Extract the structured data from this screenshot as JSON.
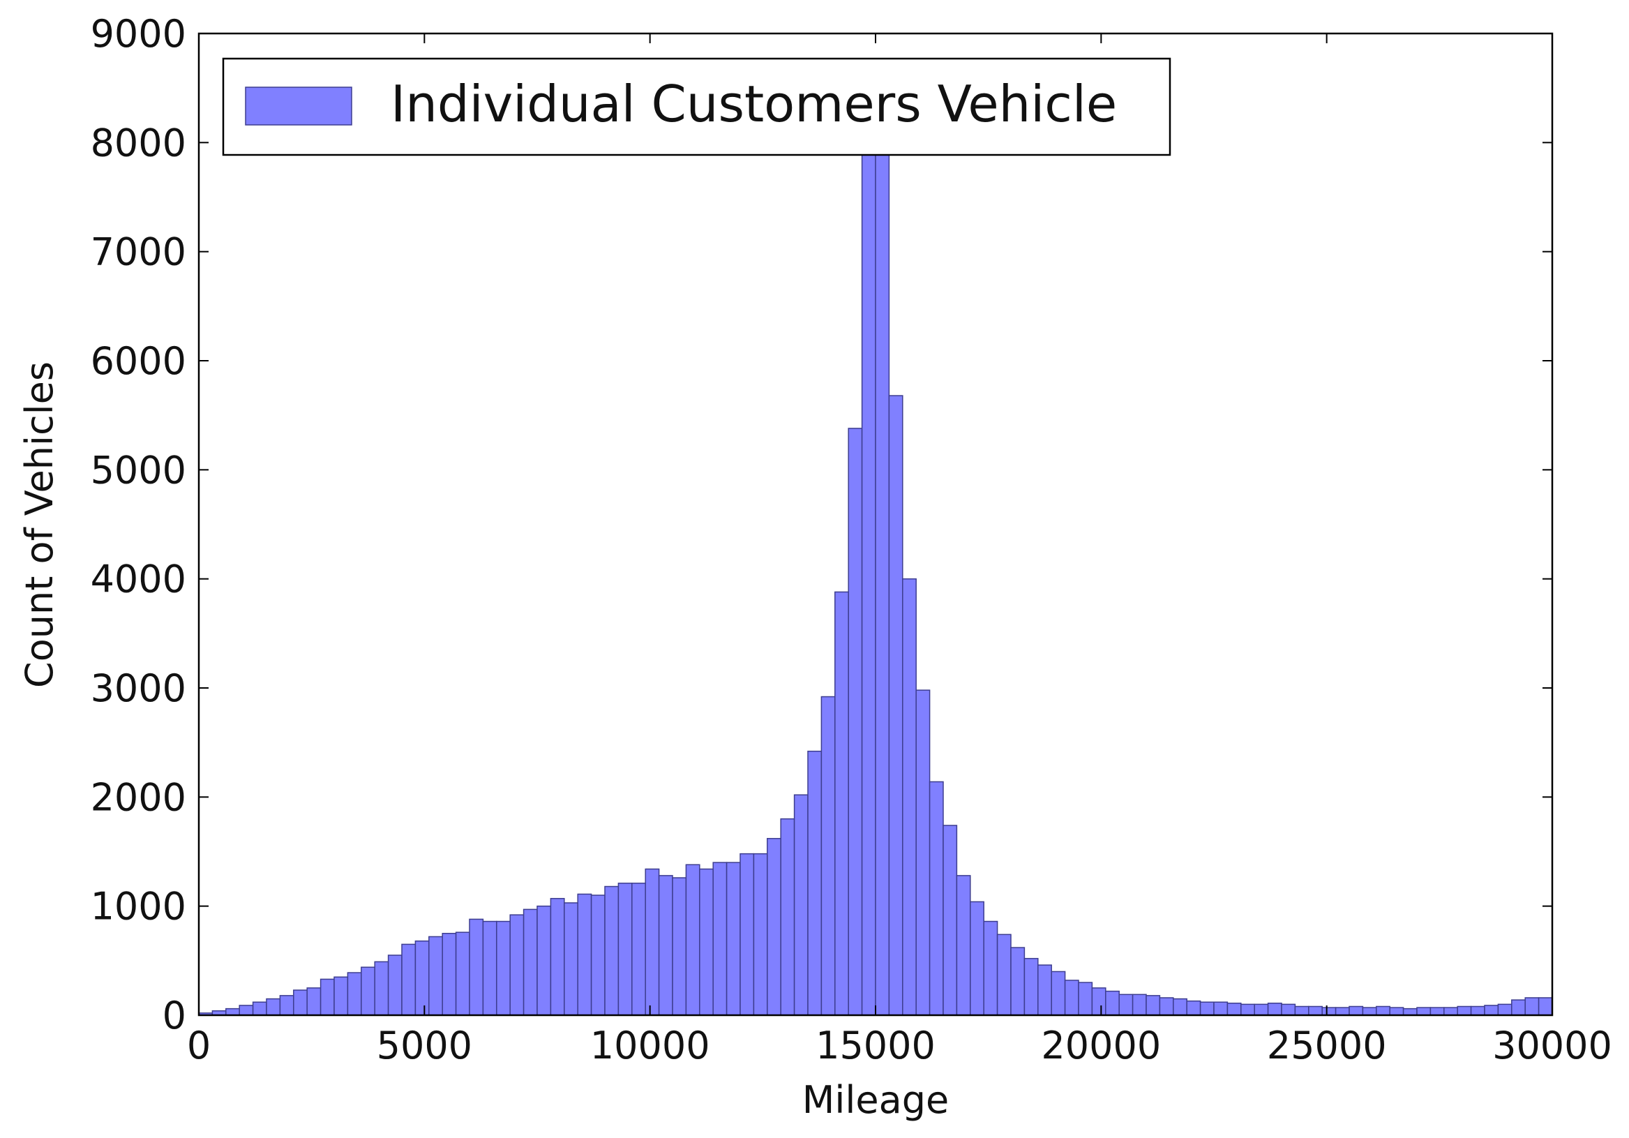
{
  "chart_data": {
    "type": "bar",
    "subtype": "histogram",
    "xlabel": "Mileage",
    "ylabel": "Count of Vehicles",
    "xlim": [
      0,
      30000
    ],
    "ylim": [
      0,
      9000
    ],
    "x_ticks": [
      0,
      5000,
      10000,
      15000,
      20000,
      25000,
      30000
    ],
    "y_ticks": [
      0,
      1000,
      2000,
      3000,
      4000,
      5000,
      6000,
      7000,
      8000,
      9000
    ],
    "x_tick_labels": [
      "0",
      "5000",
      "10000",
      "15000",
      "20000",
      "25000",
      "30000"
    ],
    "y_tick_labels": [
      "0",
      "1000",
      "2000",
      "3000",
      "4000",
      "5000",
      "6000",
      "7000",
      "8000",
      "9000"
    ],
    "grid": false,
    "legend": {
      "position": "top-left",
      "entries": [
        "Individual Customers Vehicle"
      ]
    },
    "bin_width": 300,
    "series": [
      {
        "name": "Individual Customers Vehicle",
        "color": "#8080ff",
        "edge_color": "#3d3d8f",
        "bin_start": [
          0,
          300,
          600,
          900,
          1200,
          1500,
          1800,
          2100,
          2400,
          2700,
          3000,
          3300,
          3600,
          3900,
          4200,
          4500,
          4800,
          5100,
          5400,
          5700,
          6000,
          6300,
          6600,
          6900,
          7200,
          7500,
          7800,
          8100,
          8400,
          8700,
          9000,
          9300,
          9600,
          9900,
          10200,
          10500,
          10800,
          11100,
          11400,
          11700,
          12000,
          12300,
          12600,
          12900,
          13200,
          13500,
          13800,
          14100,
          14400,
          14700,
          15000,
          15300,
          15600,
          15900,
          16200,
          16500,
          16800,
          17100,
          17400,
          17700,
          18000,
          18300,
          18600,
          18900,
          19200,
          19500,
          19800,
          20100,
          20400,
          20700,
          21000,
          21300,
          21600,
          21900,
          22200,
          22500,
          22800,
          23100,
          23400,
          23700,
          24000,
          24300,
          24600,
          24900,
          25200,
          25500,
          25800,
          26100,
          26400,
          26700,
          27000,
          27300,
          27600,
          27900,
          28200,
          28500,
          28800,
          29100,
          29400,
          29700
        ],
        "values": [
          20,
          40,
          60,
          90,
          120,
          150,
          180,
          230,
          250,
          330,
          350,
          390,
          440,
          490,
          550,
          650,
          680,
          720,
          750,
          760,
          880,
          860,
          860,
          920,
          970,
          1000,
          1070,
          1030,
          1110,
          1100,
          1180,
          1210,
          1210,
          1340,
          1280,
          1260,
          1380,
          1340,
          1400,
          1400,
          1480,
          1480,
          1620,
          1800,
          2020,
          2420,
          2920,
          3880,
          5380,
          7900,
          7900,
          5680,
          4000,
          2980,
          2140,
          1740,
          1280,
          1040,
          860,
          740,
          620,
          520,
          460,
          400,
          320,
          300,
          250,
          220,
          190,
          190,
          180,
          160,
          150,
          130,
          120,
          120,
          110,
          100,
          100,
          110,
          100,
          80,
          80,
          70,
          70,
          80,
          70,
          80,
          70,
          60,
          70,
          70,
          70,
          80,
          80,
          90,
          100,
          140,
          160,
          160
        ]
      }
    ]
  }
}
